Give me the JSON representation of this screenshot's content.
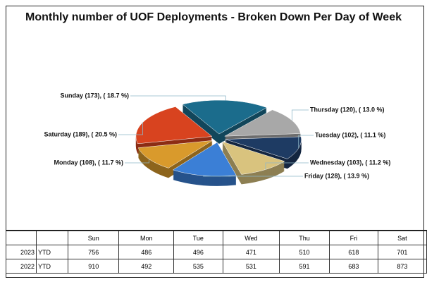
{
  "chart_data": {
    "type": "pie",
    "title": "Monthly number of UOF Deployments - Broken Down Per Day of Week",
    "categories": [
      "Sunday",
      "Thursday",
      "Tuesday",
      "Wednesday",
      "Friday",
      "Monday",
      "Saturday"
    ],
    "values": [
      173,
      120,
      102,
      103,
      128,
      108,
      189
    ],
    "value_labels": [
      "Sunday (173), ( 18.7 %)",
      "Thursday (120), ( 13.0 %)",
      "Tuesday (102), ( 11.1 %)",
      "Wednesday (103), ( 11.2 %)",
      "Friday (128), ( 13.9 %)",
      "Monday (108), ( 11.7 %)",
      "Saturday (189), ( 20.5 %)"
    ],
    "colors": [
      "#1b6c8c",
      "#a8a8a8",
      "#1e3b63",
      "#d9c37e",
      "#3b7fd6",
      "#d99a2c",
      "#d8431f"
    ]
  },
  "table": {
    "header": [
      "",
      "",
      "Sun",
      "Mon",
      "Tue",
      "Wed",
      "Thu",
      "Fri",
      "Sat"
    ],
    "rows": [
      [
        "2023",
        "YTD",
        "756",
        "486",
        "496",
        "471",
        "510",
        "618",
        "701"
      ],
      [
        "2022",
        "YTD",
        "910",
        "492",
        "535",
        "531",
        "591",
        "683",
        "873"
      ]
    ]
  }
}
